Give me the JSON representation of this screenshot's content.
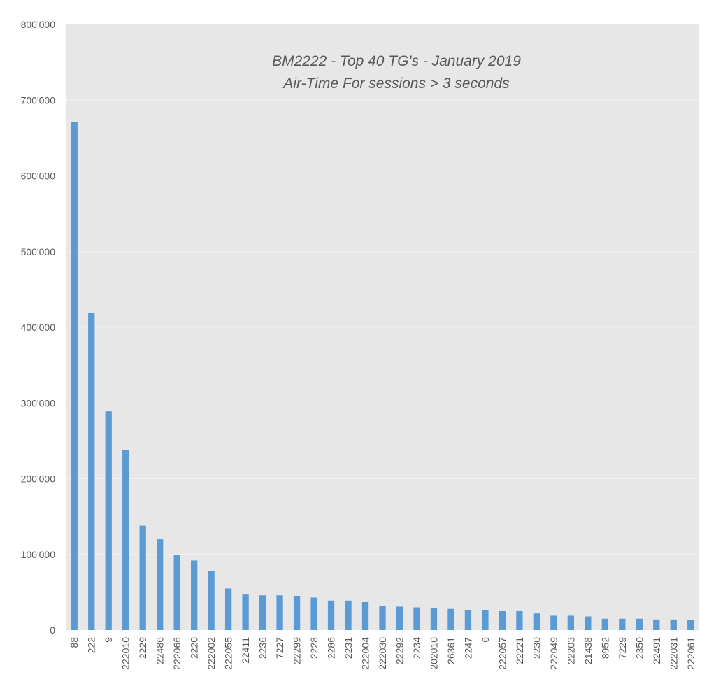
{
  "chart_data": {
    "type": "bar",
    "title": "BM2222 - Top 40 TG's - January 2019",
    "subtitle": "Air-Time For sessions > 3 seconds",
    "xlabel": "",
    "ylabel": "",
    "ylim": [
      0,
      800000
    ],
    "yticks": [
      0,
      100000,
      200000,
      300000,
      400000,
      500000,
      600000,
      700000,
      800000
    ],
    "ytick_labels": [
      "0",
      "100'000",
      "200'000",
      "300'000",
      "400'000",
      "500'000",
      "600'000",
      "700'000",
      "800'000"
    ],
    "grid": true,
    "legend": "none",
    "colors": {
      "bar": "#5b9bd5",
      "plot_bg": "#e7e7e7",
      "grid": "#f2f2f2",
      "text": "#595959"
    },
    "categories": [
      "88",
      "222",
      "9",
      "222010",
      "2229",
      "22486",
      "222066",
      "2220",
      "222002",
      "222055",
      "22411",
      "2236",
      "7227",
      "22299",
      "2228",
      "2286",
      "2231",
      "222004",
      "222030",
      "22292",
      "2234",
      "202010",
      "26361",
      "2247",
      "6",
      "222057",
      "22221",
      "2230",
      "222049",
      "22203",
      "21438",
      "8952",
      "7229",
      "2350",
      "22491",
      "222031",
      "222061"
    ],
    "values": [
      671000,
      419000,
      289000,
      238000,
      138000,
      120000,
      99000,
      92000,
      78000,
      55000,
      47000,
      46000,
      46000,
      45000,
      43000,
      39000,
      39000,
      37000,
      32000,
      31000,
      30000,
      29000,
      28000,
      26000,
      26000,
      25000,
      25000,
      22000,
      19000,
      19000,
      18000,
      15000,
      15000,
      15000,
      14000,
      14000,
      13000
    ]
  }
}
